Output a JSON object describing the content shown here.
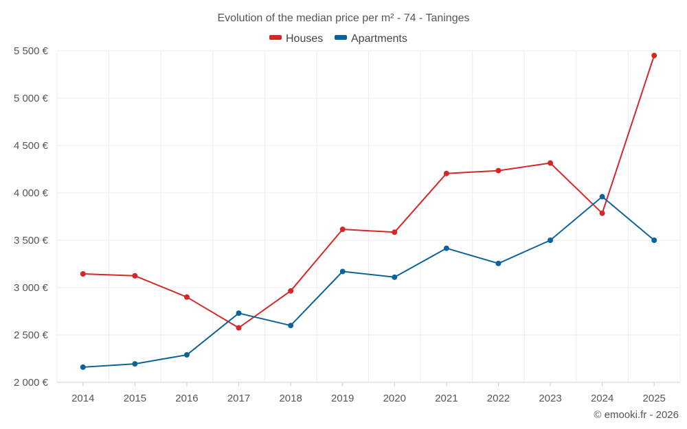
{
  "chart_data": {
    "type": "line",
    "title": "Evolution of the median price per m² - 74 - Taninges",
    "xlabel": "",
    "ylabel": "",
    "categories": [
      "2014",
      "2015",
      "2016",
      "2017",
      "2018",
      "2019",
      "2020",
      "2021",
      "2022",
      "2023",
      "2024",
      "2025"
    ],
    "ylim": [
      2000,
      5500
    ],
    "yticks": [
      2000,
      2500,
      3000,
      3500,
      4000,
      4500,
      5000,
      5500
    ],
    "ytick_labels": [
      "2 000 €",
      "2 500 €",
      "3 000 €",
      "3 500 €",
      "4 000 €",
      "4 500 €",
      "5 000 €",
      "5 500 €"
    ],
    "grid": true,
    "legend_position": "top-center",
    "series": [
      {
        "name": "Houses",
        "color": "#d62728",
        "values": [
          3145,
          3125,
          2900,
          2575,
          2965,
          3615,
          3585,
          4205,
          4235,
          4315,
          3785,
          5450
        ]
      },
      {
        "name": "Apartments",
        "color": "#0b6399",
        "values": [
          2160,
          2195,
          2290,
          2730,
          2600,
          3170,
          3110,
          3415,
          3255,
          3500,
          3960,
          3500
        ]
      }
    ],
    "credit": "© emooki.fr - 2026"
  }
}
